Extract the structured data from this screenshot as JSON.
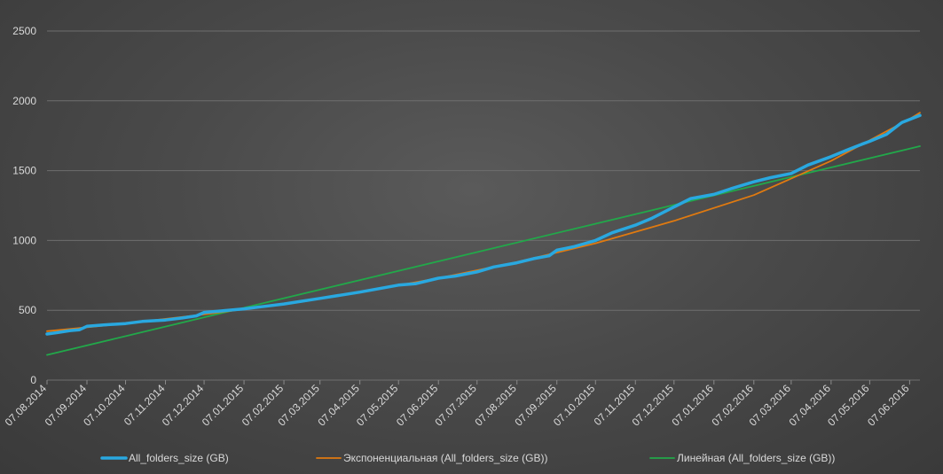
{
  "chart_data": {
    "type": "line",
    "y_ticks": [
      0,
      500,
      1000,
      1500,
      2000,
      2500
    ],
    "ylim": [
      0,
      2500
    ],
    "grid": true,
    "legend_position": "bottom",
    "x_tick_labels": [
      "07.08.2014",
      "07.09.2014",
      "07.10.2014",
      "07.11.2014",
      "07.12.2014",
      "07.01.2015",
      "07.02.2015",
      "07.03.2015",
      "07.04.2015",
      "07.05.2015",
      "07.06.2015",
      "07.07.2015",
      "07.08.2015",
      "07.09.2015",
      "07.10.2015",
      "07.11.2015",
      "07.12.2015",
      "07.01.2016",
      "07.02.2016",
      "07.03.2016",
      "07.04.2016",
      "07.05.2016",
      "07.06.2016"
    ],
    "x_range": [
      "07.08.2014",
      "15.06.2016"
    ],
    "series": [
      {
        "name": "All_folders_size (GB)",
        "color": "#29a8e0",
        "points": [
          [
            "07.08.2014",
            330
          ],
          [
            "15.08.2014",
            340
          ],
          [
            "25.08.2014",
            355
          ],
          [
            "01.09.2014",
            360
          ],
          [
            "07.09.2014",
            385
          ],
          [
            "20.09.2014",
            395
          ],
          [
            "07.10.2014",
            405
          ],
          [
            "20.10.2014",
            420
          ],
          [
            "07.11.2014",
            430
          ],
          [
            "20.11.2014",
            445
          ],
          [
            "01.12.2014",
            460
          ],
          [
            "07.12.2014",
            485
          ],
          [
            "20.12.2014",
            495
          ],
          [
            "07.01.2015",
            510
          ],
          [
            "20.01.2015",
            525
          ],
          [
            "07.02.2015",
            545
          ],
          [
            "07.03.2015",
            585
          ],
          [
            "07.04.2015",
            630
          ],
          [
            "07.05.2015",
            680
          ],
          [
            "20.05.2015",
            690
          ],
          [
            "07.06.2015",
            730
          ],
          [
            "20.06.2015",
            745
          ],
          [
            "07.07.2015",
            775
          ],
          [
            "20.07.2015",
            810
          ],
          [
            "07.08.2015",
            840
          ],
          [
            "20.08.2015",
            870
          ],
          [
            "01.09.2015",
            890
          ],
          [
            "07.09.2015",
            930
          ],
          [
            "20.09.2015",
            955
          ],
          [
            "07.10.2015",
            1000
          ],
          [
            "20.10.2015",
            1055
          ],
          [
            "07.11.2015",
            1110
          ],
          [
            "20.11.2015",
            1160
          ],
          [
            "07.12.2015",
            1240
          ],
          [
            "20.12.2015",
            1300
          ],
          [
            "07.01.2016",
            1330
          ],
          [
            "20.01.2016",
            1370
          ],
          [
            "07.02.2016",
            1420
          ],
          [
            "20.02.2016",
            1450
          ],
          [
            "07.03.2016",
            1480
          ],
          [
            "20.03.2016",
            1540
          ],
          [
            "07.04.2016",
            1600
          ],
          [
            "20.04.2016",
            1650
          ],
          [
            "01.05.2016",
            1690
          ],
          [
            "07.05.2016",
            1710
          ],
          [
            "20.05.2016",
            1760
          ],
          [
            "01.06.2016",
            1845
          ],
          [
            "15.06.2016",
            1895
          ]
        ]
      },
      {
        "name": "Экспоненциальная (All_folders_size (GB))",
        "color": "#e07a10",
        "points": [
          [
            "07.08.2014",
            350
          ],
          [
            "07.10.2014",
            405
          ],
          [
            "07.12.2014",
            470
          ],
          [
            "07.02.2015",
            545
          ],
          [
            "07.04.2015",
            630
          ],
          [
            "07.06.2015",
            730
          ],
          [
            "07.08.2015",
            845
          ],
          [
            "07.10.2015",
            980
          ],
          [
            "07.12.2015",
            1140
          ],
          [
            "07.02.2016",
            1325
          ],
          [
            "07.04.2016",
            1570
          ],
          [
            "07.06.2016",
            1870
          ],
          [
            "15.06.2016",
            1915
          ]
        ]
      },
      {
        "name": "Линейная (All_folders_size (GB))",
        "color": "#22a84a",
        "points": [
          [
            "07.08.2014",
            180
          ],
          [
            "15.06.2016",
            1675
          ]
        ]
      }
    ]
  }
}
